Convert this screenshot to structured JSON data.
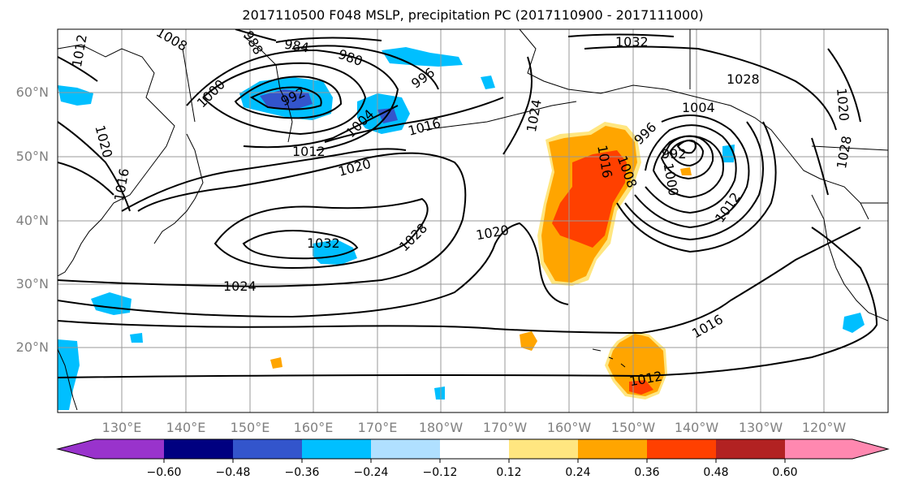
{
  "title": "2017110500 F048 MSLP, precipitation PC (2017110900 - 2017111000)",
  "lat_labels": [
    "60°N",
    "50°N",
    "40°N",
    "30°N",
    "20°N"
  ],
  "lon_labels": [
    "130°E",
    "140°E",
    "150°E",
    "160°E",
    "170°E",
    "180°W",
    "170°W",
    "160°W",
    "150°W",
    "140°W",
    "130°W",
    "120°W"
  ],
  "colorbar": {
    "ticks": [
      "−0.60",
      "−0.48",
      "−0.36",
      "−0.24",
      "−0.12",
      "0.12",
      "0.24",
      "0.36",
      "0.48",
      "0.60"
    ],
    "colors": [
      "#9933cc",
      "#000080",
      "#3355cc",
      "#00bfff",
      "#b0e0ff",
      "#ffffff",
      "#ffe680",
      "#ffa500",
      "#ff4000",
      "#b22222",
      "#ff88b0"
    ]
  },
  "contour_labels": {
    "c1032a": "1032",
    "c1032b": "1032",
    "c1028a": "1028",
    "c1028b": "1028",
    "c1028c": "1028",
    "c1024a": "1024",
    "c1024b": "1024",
    "c1020a": "1020",
    "c1020b": "1020",
    "c1020c": "1020",
    "c1020d": "1020",
    "c1016a": "1016",
    "c1016b": "1016",
    "c1016c": "1016",
    "c1016d": "1016",
    "c1012a": "1012",
    "c1012b": "1012",
    "c1012c": "1012",
    "c1012d": "1012",
    "c1008a": "1008",
    "c1008b": "1008",
    "c1004a": "1004",
    "c1004b": "1004",
    "c1000a": "1000",
    "c1000b": "1000",
    "c996a": "996",
    "c996b": "996",
    "c992a": "992",
    "c992b": "992",
    "c988": "988",
    "c984": "984",
    "c980": "980"
  }
}
